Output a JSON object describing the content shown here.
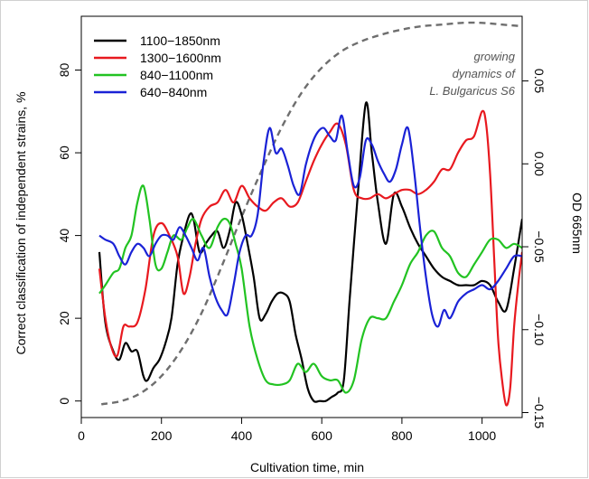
{
  "chart_data": {
    "type": "line",
    "title": "",
    "xlabel": "Cultivation time, min",
    "ylabel": "Correct classification of independent strains, %",
    "y2label": "OD 665nm",
    "xlim": [
      0,
      1100
    ],
    "ylim": [
      -4,
      93
    ],
    "y2lim": [
      -0.153,
      0.089
    ],
    "xticks": [
      0,
      200,
      400,
      600,
      800,
      1000
    ],
    "yticks": [
      0,
      20,
      40,
      60,
      80
    ],
    "y2ticks": [
      -0.15,
      -0.1,
      -0.05,
      0.0,
      0.05
    ],
    "y2tick_labels": [
      "−0.15",
      "−0.10",
      "−0.05",
      "0.00",
      "0.05"
    ],
    "grid": false,
    "legend_position": "top-left",
    "annotation": {
      "lines": [
        "growing",
        "dynamics of",
        "L. Bulgaricus S6"
      ],
      "line_color": "#6e6e6e"
    },
    "growth_curve": {
      "axis": "right",
      "x": [
        50,
        100,
        150,
        200,
        250,
        300,
        350,
        400,
        450,
        500,
        550,
        600,
        650,
        700,
        750,
        800,
        850,
        900,
        950,
        1000,
        1050,
        1100
      ],
      "values": [
        -0.145,
        -0.143,
        -0.138,
        -0.128,
        -0.112,
        -0.09,
        -0.062,
        -0.032,
        -0.004,
        0.022,
        0.043,
        0.058,
        0.068,
        0.074,
        0.078,
        0.081,
        0.083,
        0.084,
        0.085,
        0.085,
        0.084,
        0.083
      ]
    },
    "series": [
      {
        "name": "1100−1850nm",
        "color": "#000000",
        "x": [
          45,
          60,
          80,
          95,
          110,
          125,
          140,
          155,
          165,
          180,
          195,
          210,
          225,
          240,
          255,
          270,
          280,
          295,
          310,
          325,
          340,
          355,
          370,
          385,
          400,
          415,
          430,
          445,
          460,
          475,
          490,
          505,
          520,
          535,
          550,
          565,
          580,
          595,
          610,
          625,
          640,
          655,
          670,
          690,
          710,
          725,
          740,
          760,
          780,
          800,
          820,
          840,
          860,
          880,
          900,
          920,
          940,
          960,
          980,
          1000,
          1020,
          1040,
          1060,
          1080,
          1100
        ],
        "values": [
          36,
          19,
          12,
          10,
          14,
          12,
          12,
          6,
          5,
          8,
          10,
          14,
          20,
          33,
          40,
          45,
          44,
          36,
          38,
          40,
          41,
          37,
          41,
          48,
          45,
          38,
          30,
          20,
          21,
          24,
          26,
          26,
          24,
          16,
          10,
          3,
          0,
          0,
          0,
          1,
          2,
          5,
          25,
          50,
          72,
          60,
          48,
          38,
          50,
          47,
          42,
          38,
          35,
          32,
          30,
          29,
          28,
          28,
          28,
          29,
          28,
          24,
          22,
          32,
          44
        ]
      },
      {
        "name": "1300−1600nm",
        "color": "#e8191f",
        "x": [
          45,
          60,
          75,
          90,
          105,
          120,
          140,
          160,
          180,
          200,
          220,
          240,
          255,
          270,
          285,
          300,
          320,
          340,
          360,
          380,
          400,
          420,
          440,
          460,
          480,
          500,
          520,
          540,
          560,
          580,
          600,
          620,
          640,
          660,
          680,
          700,
          720,
          740,
          760,
          780,
          800,
          820,
          840,
          860,
          880,
          900,
          920,
          940,
          960,
          980,
          1000,
          1010,
          1020,
          1030,
          1040,
          1050,
          1060,
          1070,
          1080,
          1090,
          1100
        ],
        "values": [
          32,
          20,
          13,
          11,
          18,
          18,
          19,
          27,
          40,
          43,
          40,
          35,
          26,
          30,
          38,
          44,
          47,
          48,
          51,
          48,
          52,
          49,
          47,
          46,
          48,
          49,
          47,
          48,
          53,
          58,
          62,
          65,
          67,
          62,
          51,
          49,
          49,
          50,
          49,
          50,
          51,
          51,
          50,
          51,
          53,
          56,
          56,
          60,
          63,
          64,
          70,
          67,
          55,
          35,
          15,
          5,
          -1,
          3,
          18,
          28,
          36
        ]
      },
      {
        "name": "840−1100nm",
        "color": "#22c322",
        "x": [
          45,
          60,
          80,
          95,
          110,
          125,
          140,
          155,
          170,
          185,
          200,
          215,
          230,
          250,
          265,
          280,
          300,
          320,
          340,
          355,
          370,
          385,
          400,
          420,
          440,
          460,
          480,
          500,
          520,
          540,
          560,
          580,
          600,
          620,
          640,
          660,
          680,
          700,
          720,
          740,
          760,
          780,
          800,
          820,
          840,
          860,
          880,
          900,
          920,
          940,
          960,
          980,
          1000,
          1020,
          1040,
          1060,
          1080,
          1100
        ],
        "values": [
          26,
          28,
          31,
          32,
          37,
          40,
          48,
          52,
          44,
          33,
          32,
          36,
          40,
          39,
          42,
          44,
          40,
          37,
          42,
          44,
          43,
          38,
          32,
          18,
          10,
          5,
          4,
          4,
          5,
          9,
          7,
          9,
          6,
          5,
          5,
          2,
          5,
          15,
          20,
          20,
          20,
          24,
          28,
          33,
          36,
          40,
          41,
          37,
          35,
          31,
          30,
          33,
          36,
          39,
          39,
          37,
          38,
          37
        ]
      },
      {
        "name": "640−840nm",
        "color": "#1a22d6",
        "x": [
          45,
          60,
          80,
          95,
          110,
          125,
          140,
          155,
          170,
          185,
          200,
          215,
          230,
          245,
          260,
          275,
          290,
          305,
          320,
          335,
          350,
          365,
          380,
          395,
          410,
          425,
          440,
          455,
          470,
          485,
          500,
          515,
          530,
          545,
          560,
          575,
          590,
          605,
          620,
          635,
          650,
          665,
          680,
          695,
          710,
          725,
          740,
          755,
          770,
          785,
          800,
          815,
          830,
          845,
          860,
          875,
          890,
          905,
          920,
          940,
          960,
          980,
          1000,
          1020,
          1040,
          1060,
          1080,
          1100
        ],
        "values": [
          40,
          39,
          38,
          35,
          33,
          36,
          38,
          37,
          35,
          38,
          40,
          40,
          39,
          42,
          40,
          37,
          34,
          37,
          30,
          25,
          22,
          21,
          28,
          36,
          40,
          40,
          45,
          58,
          66,
          60,
          61,
          57,
          52,
          50,
          57,
          62,
          65,
          66,
          64,
          63,
          69,
          60,
          52,
          54,
          63,
          62,
          58,
          55,
          53,
          56,
          62,
          66,
          56,
          42,
          30,
          21,
          18,
          22,
          20,
          24,
          26,
          27,
          28,
          27,
          29,
          32,
          35,
          35
        ]
      }
    ]
  }
}
